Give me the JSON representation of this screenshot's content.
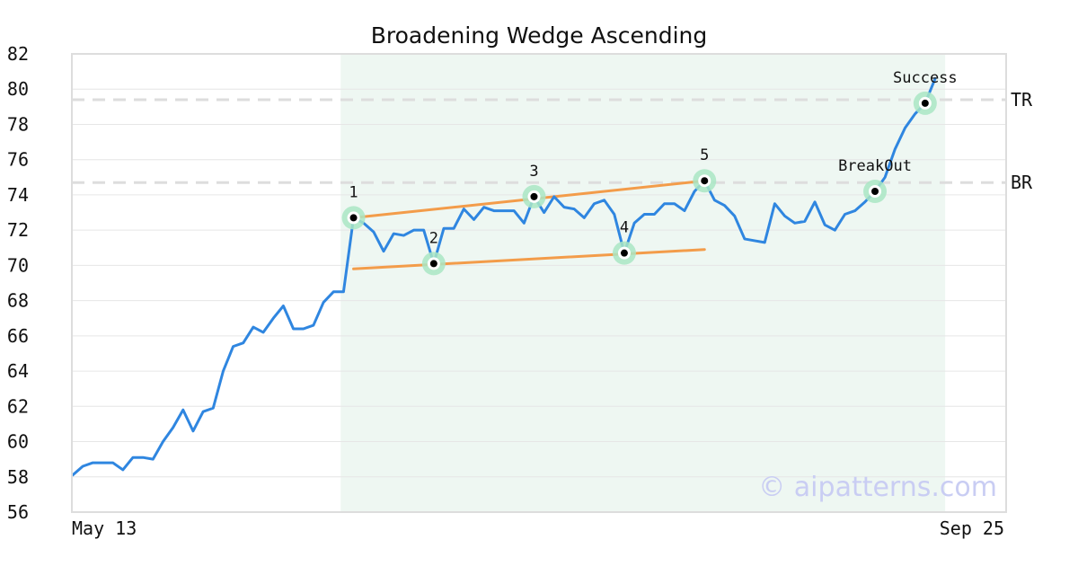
{
  "chart_data": {
    "type": "line",
    "title": "Broadening Wedge Ascending",
    "xlabel": "",
    "ylabel": "",
    "ylim": [
      56,
      82
    ],
    "yticks": [
      56,
      58,
      60,
      62,
      64,
      66,
      68,
      70,
      72,
      74,
      76,
      78,
      80,
      82
    ],
    "x_tick_labels": [
      "May 13",
      "Sep 25"
    ],
    "grid": true,
    "watermark": "© aipatterns.com",
    "colors": {
      "line": "#2f86e0",
      "trendline": "#f39c4a",
      "marker_halo": "#a9e6c4",
      "marker_dot": "#000000",
      "pattern_region": "#eef7f2",
      "level_line": "#dddddd",
      "grid": "#e6e6e6"
    },
    "series": [
      {
        "values": [
          58.1,
          58.6,
          58.8,
          58.8,
          58.8,
          58.4,
          59.1,
          59.1,
          59.0,
          60.0,
          60.8,
          61.8,
          60.6,
          61.7,
          61.9,
          64.0,
          65.4,
          65.6,
          66.5,
          66.2,
          67.0,
          67.7,
          66.4,
          66.4,
          66.6,
          67.9,
          68.5,
          68.5,
          72.7,
          72.4,
          71.9,
          70.8,
          71.8,
          71.7,
          72.0,
          72.0,
          70.1,
          72.1,
          72.1,
          73.2,
          72.6,
          73.3,
          73.1,
          73.1,
          73.1,
          72.4,
          73.9,
          73.0,
          73.9,
          73.3,
          73.2,
          72.7,
          73.5,
          73.7,
          72.9,
          70.7,
          72.4,
          72.9,
          72.9,
          73.5,
          73.5,
          73.1,
          74.2,
          74.8,
          73.7,
          73.4,
          72.8,
          71.5,
          71.4,
          71.3,
          73.5,
          72.8,
          72.4,
          72.5,
          73.6,
          72.3,
          72.0,
          72.9,
          73.1,
          73.6,
          74.2,
          75.0,
          76.6,
          77.8,
          78.6,
          79.2,
          80.6
        ]
      }
    ],
    "pattern_region": {
      "start_index": 26,
      "end_index": 87
    },
    "levels": [
      {
        "label": "TR",
        "value": 79.4
      },
      {
        "label": "BR",
        "value": 74.7
      }
    ],
    "pattern_points": [
      {
        "label": "1",
        "index": 28,
        "value": 72.7
      },
      {
        "label": "2",
        "index": 36,
        "value": 70.1
      },
      {
        "label": "3",
        "index": 46,
        "value": 73.9
      },
      {
        "label": "4",
        "index": 55,
        "value": 70.7
      },
      {
        "label": "5",
        "index": 63,
        "value": 74.8
      }
    ],
    "annotations": [
      {
        "label": "BreakOut",
        "index": 80,
        "value": 74.2
      },
      {
        "label": "Success",
        "index": 85,
        "value": 79.2
      }
    ],
    "trendlines": [
      {
        "from": {
          "index": 28,
          "value": 72.7
        },
        "to": {
          "index": 63,
          "value": 74.8
        }
      },
      {
        "from": {
          "index": 28,
          "value": 69.8
        },
        "to": {
          "index": 63,
          "value": 70.9
        }
      }
    ]
  }
}
